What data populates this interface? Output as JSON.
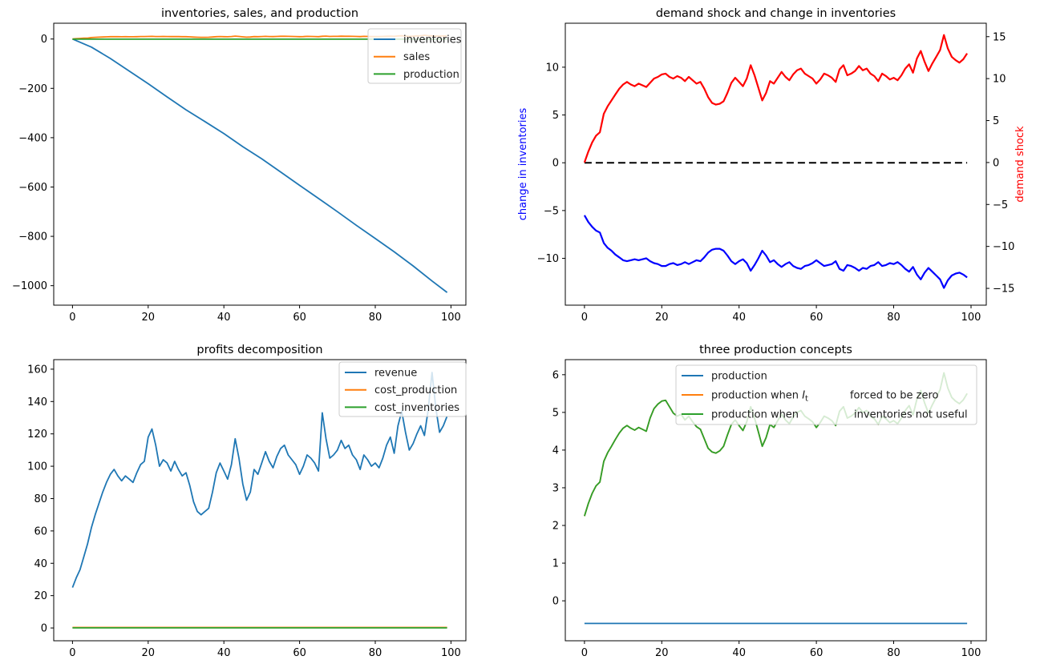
{
  "figure": {
    "background": "#ffffff",
    "text_color": "#000000",
    "palette": {
      "mpl_blue": "#1f77b4",
      "mpl_orange": "#ff7f0e",
      "mpl_green": "#2ca02c",
      "pure_red": "#ff0000",
      "pure_blue": "#0000ff",
      "black": "#000000",
      "legend_edge": "#cccccc"
    }
  },
  "chart_data": [
    {
      "type": "line",
      "title": "inventories, sales, and production",
      "xlabel": "",
      "ylabel": "",
      "xlim": [
        -4.95,
        103.95
      ],
      "ylim": [
        -1079,
        64
      ],
      "xticks": [
        0,
        20,
        40,
        60,
        80,
        100
      ],
      "yticks": [
        0,
        -200,
        -400,
        -600,
        -800,
        -1000
      ],
      "grid": false,
      "legend": {
        "position": "upper right",
        "entries": [
          {
            "label": "inventories",
            "color": "#1f77b4",
            "segments": [
              {
                "text": "inventories"
              }
            ]
          },
          {
            "label": "sales",
            "color": "#ff7f0e",
            "segments": [
              {
                "text": "sales"
              }
            ]
          },
          {
            "label": "production",
            "color": "#2ca02c",
            "segments": [
              {
                "text": "production"
              }
            ]
          }
        ]
      },
      "series": [
        {
          "name": "inventories",
          "color": "#1f77b4",
          "width": 1.8,
          "x": [
            0,
            5,
            10,
            15,
            20,
            25,
            30,
            35,
            40,
            45,
            50,
            55,
            60,
            65,
            70,
            75,
            80,
            85,
            90,
            95,
            99
          ],
          "y": [
            0,
            -32.8,
            -78.8,
            -129.8,
            -181.3,
            -234.7,
            -286.9,
            -334.6,
            -383.4,
            -436.3,
            -485.8,
            -539.1,
            -593.2,
            -646.0,
            -700.2,
            -755.4,
            -808.5,
            -862.7,
            -920.0,
            -980.8,
            -1027.4
          ]
        },
        {
          "name": "sales",
          "color": "#ff7f0e",
          "width": 1.8,
          "y": [
            0.0,
            1.3,
            2.4,
            3.2,
            3.6,
            5.8,
            6.7,
            7.4,
            8.1,
            8.8,
            9.3,
            9.6,
            9.3,
            9.1,
            9.4,
            9.2,
            9.0,
            9.5,
            10.0,
            10.2,
            10.5,
            10.6,
            10.2,
            10.0,
            10.3,
            10.1,
            9.7,
            10.2,
            9.8,
            9.4,
            9.6,
            8.8,
            7.8,
            7.1,
            6.9,
            7.0,
            7.3,
            8.3,
            9.5,
            10.1,
            9.6,
            9.1,
            10.0,
            11.6,
            10.4,
            8.9,
            7.4,
            8.3,
            9.7,
            9.4,
            10.1,
            10.8,
            10.2,
            9.8,
            10.5,
            11.0,
            11.2,
            10.6,
            10.3,
            10.0,
            9.4,
            9.9,
            10.6,
            10.4,
            10.1,
            9.6,
            11.1,
            11.6,
            10.4,
            10.6,
            10.9,
            11.5,
            11.0,
            11.2,
            10.6,
            10.3,
            9.7,
            10.6,
            10.3,
            9.9,
            10.1,
            9.8,
            10.4,
            11.2,
            11.7,
            10.7,
            12.4,
            13.3,
            12.0,
            10.9,
            11.8,
            12.6,
            13.4,
            15.2,
            13.6,
            12.6,
            12.2,
            11.9,
            12.3,
            13.0
          ]
        },
        {
          "name": "production",
          "color": "#2ca02c",
          "width": 1.8,
          "x": [
            0,
            99
          ],
          "y": [
            -0.5,
            -0.5
          ]
        }
      ]
    },
    {
      "type": "line",
      "title": "demand shock and change in inventories",
      "xlim": [
        -4.95,
        103.95
      ],
      "ylim": [
        -14.9,
        14.6
      ],
      "ylim_right": [
        -17.0,
        16.6
      ],
      "xticks": [
        0,
        20,
        40,
        60,
        80,
        100
      ],
      "yticks": [
        10,
        5,
        0,
        -5,
        -10
      ],
      "yticks_right": [
        15,
        10,
        5,
        0,
        -5,
        -10,
        -15
      ],
      "ylabel_left": {
        "text": "change in inventories",
        "color": "#0000ff"
      },
      "ylabel_right": {
        "text": "demand shock",
        "color": "#ff0000"
      },
      "grid": false,
      "legend": null,
      "series": [
        {
          "name": "zero-line",
          "color": "#000000",
          "width": 2,
          "dash": "9 5",
          "x": [
            0,
            99
          ],
          "y": [
            0,
            0
          ]
        },
        {
          "name": "change in inventories",
          "color": "#0000ff",
          "width": 2.2,
          "y": [
            -5.5,
            -6.2,
            -6.7,
            -7.1,
            -7.3,
            -8.4,
            -8.9,
            -9.2,
            -9.6,
            -9.9,
            -10.2,
            -10.3,
            -10.2,
            -10.1,
            -10.2,
            -10.1,
            -10.0,
            -10.3,
            -10.5,
            -10.6,
            -10.8,
            -10.8,
            -10.6,
            -10.5,
            -10.7,
            -10.6,
            -10.4,
            -10.6,
            -10.4,
            -10.2,
            -10.3,
            -9.9,
            -9.4,
            -9.1,
            -9.0,
            -9.0,
            -9.2,
            -9.7,
            -10.3,
            -10.6,
            -10.3,
            -10.1,
            -10.5,
            -11.3,
            -10.7,
            -10.0,
            -9.2,
            -9.7,
            -10.4,
            -10.2,
            -10.6,
            -10.9,
            -10.6,
            -10.4,
            -10.8,
            -11.0,
            -11.1,
            -10.8,
            -10.7,
            -10.5,
            -10.2,
            -10.5,
            -10.8,
            -10.7,
            -10.6,
            -10.3,
            -11.1,
            -11.3,
            -10.7,
            -10.8,
            -11.0,
            -11.3,
            -11.0,
            -11.1,
            -10.8,
            -10.7,
            -10.4,
            -10.8,
            -10.7,
            -10.5,
            -10.6,
            -10.4,
            -10.7,
            -11.1,
            -11.4,
            -10.9,
            -11.7,
            -12.2,
            -11.5,
            -11.0,
            -11.4,
            -11.8,
            -12.2,
            -13.1,
            -12.3,
            -11.8,
            -11.6,
            -11.5,
            -11.7,
            -12.0
          ]
        },
        {
          "name": "demand shock",
          "color": "#ff0000",
          "width": 2.2,
          "axis": "right",
          "y": [
            0.0,
            1.3,
            2.4,
            3.2,
            3.6,
            5.8,
            6.7,
            7.4,
            8.1,
            8.8,
            9.3,
            9.6,
            9.3,
            9.1,
            9.4,
            9.2,
            9.0,
            9.5,
            10.0,
            10.2,
            10.5,
            10.6,
            10.2,
            10.0,
            10.3,
            10.1,
            9.7,
            10.2,
            9.8,
            9.4,
            9.6,
            8.8,
            7.8,
            7.1,
            6.9,
            7.0,
            7.3,
            8.3,
            9.5,
            10.1,
            9.6,
            9.1,
            10.0,
            11.6,
            10.4,
            8.9,
            7.4,
            8.3,
            9.7,
            9.4,
            10.1,
            10.8,
            10.2,
            9.8,
            10.5,
            11.0,
            11.2,
            10.6,
            10.3,
            10.0,
            9.4,
            9.9,
            10.6,
            10.4,
            10.1,
            9.6,
            11.1,
            11.6,
            10.4,
            10.6,
            10.9,
            11.5,
            11.0,
            11.2,
            10.6,
            10.3,
            9.7,
            10.6,
            10.3,
            9.9,
            10.1,
            9.8,
            10.4,
            11.2,
            11.7,
            10.7,
            12.4,
            13.3,
            12.0,
            10.9,
            11.8,
            12.6,
            13.4,
            15.2,
            13.6,
            12.6,
            12.2,
            11.9,
            12.3,
            13.0
          ]
        }
      ]
    },
    {
      "type": "line",
      "title": "profits decomposition",
      "xlim": [
        -4.95,
        103.95
      ],
      "ylim": [
        -7.9,
        165.9
      ],
      "xticks": [
        0,
        20,
        40,
        60,
        80,
        100
      ],
      "yticks": [
        160,
        140,
        120,
        100,
        80,
        60,
        40,
        20,
        0
      ],
      "grid": false,
      "legend": {
        "position": "upper right",
        "entries": [
          {
            "label": "revenue",
            "color": "#1f77b4",
            "segments": [
              {
                "text": "revenue"
              }
            ]
          },
          {
            "label": "cost_production",
            "color": "#ff7f0e",
            "segments": [
              {
                "text": "cost_production"
              }
            ]
          },
          {
            "label": "cost_inventories",
            "color": "#2ca02c",
            "segments": [
              {
                "text": "cost_inventories"
              }
            ]
          }
        ]
      },
      "series": [
        {
          "name": "revenue",
          "color": "#1f77b4",
          "width": 1.8,
          "y": [
            25,
            31,
            36,
            44,
            52,
            62,
            70,
            77,
            84,
            90,
            95,
            98,
            94,
            91,
            94,
            92,
            90,
            96,
            101,
            103,
            118,
            123,
            113,
            100,
            104,
            102,
            97,
            103,
            98,
            94,
            96,
            88,
            78,
            72,
            70,
            72,
            74,
            84,
            96,
            102,
            97,
            92,
            101,
            117,
            105,
            89,
            79,
            84,
            98,
            95,
            102,
            109,
            103,
            99,
            106,
            111,
            113,
            107,
            104,
            101,
            95,
            100,
            107,
            105,
            102,
            97,
            133,
            117,
            105,
            107,
            110,
            116,
            111,
            113,
            107,
            104,
            98,
            107,
            104,
            100,
            102,
            99,
            105,
            113,
            118,
            108,
            125,
            134,
            121,
            110,
            114,
            120,
            125,
            119,
            135,
            158,
            136,
            121,
            125,
            131
          ]
        },
        {
          "name": "cost_production",
          "color": "#ff7f0e",
          "width": 1.8,
          "x": [
            0,
            99
          ],
          "y": [
            0.3,
            0.3
          ]
        },
        {
          "name": "cost_inventories",
          "color": "#2ca02c",
          "width": 1.8,
          "x": [
            0,
            99
          ],
          "y": [
            0.05,
            0.05
          ]
        }
      ]
    },
    {
      "type": "line",
      "title": "three production concepts",
      "xlim": [
        -4.95,
        103.95
      ],
      "ylim": [
        -1.06,
        6.4
      ],
      "xticks": [
        0,
        20,
        40,
        60,
        80,
        100
      ],
      "yticks": [
        6,
        5,
        4,
        3,
        2,
        1,
        0
      ],
      "grid": false,
      "legend": {
        "position": "upper right",
        "entries": [
          {
            "label": "production",
            "color": "#1f77b4",
            "segments": [
              {
                "text": "production"
              }
            ]
          },
          {
            "label": "production when I_t forced to be zero",
            "color": "#ff7f0e",
            "segments": [
              {
                "text": "production when "
              },
              {
                "text": "I",
                "italic": true
              },
              {
                "text": "t",
                "sub": true
              },
              {
                "dx": 52,
                "text": "forced to be zero"
              }
            ]
          },
          {
            "label": "production when inventories not useful",
            "color": "#2ca02c",
            "segments": [
              {
                "text": "production when"
              },
              {
                "dx": 69,
                "text": "inventories not useful"
              }
            ]
          }
        ]
      },
      "series": [
        {
          "name": "production",
          "color": "#1f77b4",
          "width": 1.8,
          "x": [
            0,
            99
          ],
          "y": [
            -0.6,
            -0.6
          ]
        },
        {
          "name": "production when I_t forced to be zero",
          "color": "#ff7f0e",
          "width": 1.8,
          "y": [
            2.25,
            2.58,
            2.85,
            3.05,
            3.15,
            3.7,
            3.93,
            4.1,
            4.28,
            4.45,
            4.58,
            4.65,
            4.58,
            4.53,
            4.6,
            4.55,
            4.5,
            4.85,
            5.1,
            5.22,
            5.3,
            5.32,
            5.15,
            4.98,
            4.9,
            4.95,
            4.8,
            4.9,
            4.75,
            4.62,
            4.55,
            4.3,
            4.05,
            3.95,
            3.92,
            3.98,
            4.1,
            4.4,
            4.68,
            4.8,
            4.65,
            4.52,
            4.75,
            5.15,
            4.85,
            4.48,
            4.1,
            4.33,
            4.68,
            4.6,
            4.78,
            4.95,
            4.8,
            4.7,
            4.88,
            5.0,
            5.05,
            4.9,
            4.83,
            4.75,
            4.6,
            4.73,
            4.9,
            4.85,
            4.78,
            4.65,
            5.03,
            5.15,
            4.85,
            4.9,
            4.98,
            5.13,
            5.0,
            5.05,
            4.9,
            4.83,
            4.68,
            4.9,
            4.83,
            4.73,
            4.78,
            4.7,
            4.85,
            5.05,
            5.18,
            4.93,
            5.35,
            5.58,
            5.25,
            4.98,
            5.2,
            5.4,
            5.6,
            6.05,
            5.65,
            5.4,
            5.3,
            5.23,
            5.33,
            5.5
          ]
        },
        {
          "name": "production when inventories not useful",
          "color": "#2ca02c",
          "width": 1.8,
          "y": [
            2.25,
            2.58,
            2.85,
            3.05,
            3.15,
            3.7,
            3.93,
            4.1,
            4.28,
            4.45,
            4.58,
            4.65,
            4.58,
            4.53,
            4.6,
            4.55,
            4.5,
            4.85,
            5.1,
            5.22,
            5.3,
            5.32,
            5.15,
            4.98,
            4.9,
            4.95,
            4.8,
            4.9,
            4.75,
            4.62,
            4.55,
            4.3,
            4.05,
            3.95,
            3.92,
            3.98,
            4.1,
            4.4,
            4.68,
            4.8,
            4.65,
            4.52,
            4.75,
            5.15,
            4.85,
            4.48,
            4.1,
            4.33,
            4.68,
            4.6,
            4.78,
            4.95,
            4.8,
            4.7,
            4.88,
            5.0,
            5.05,
            4.9,
            4.83,
            4.75,
            4.6,
            4.73,
            4.9,
            4.85,
            4.78,
            4.65,
            5.03,
            5.15,
            4.85,
            4.9,
            4.98,
            5.13,
            5.0,
            5.05,
            4.9,
            4.83,
            4.68,
            4.9,
            4.83,
            4.73,
            4.78,
            4.7,
            4.85,
            5.05,
            5.18,
            4.93,
            5.35,
            5.58,
            5.25,
            4.98,
            5.2,
            5.4,
            5.6,
            6.05,
            5.65,
            5.4,
            5.3,
            5.23,
            5.33,
            5.5
          ]
        }
      ]
    }
  ]
}
